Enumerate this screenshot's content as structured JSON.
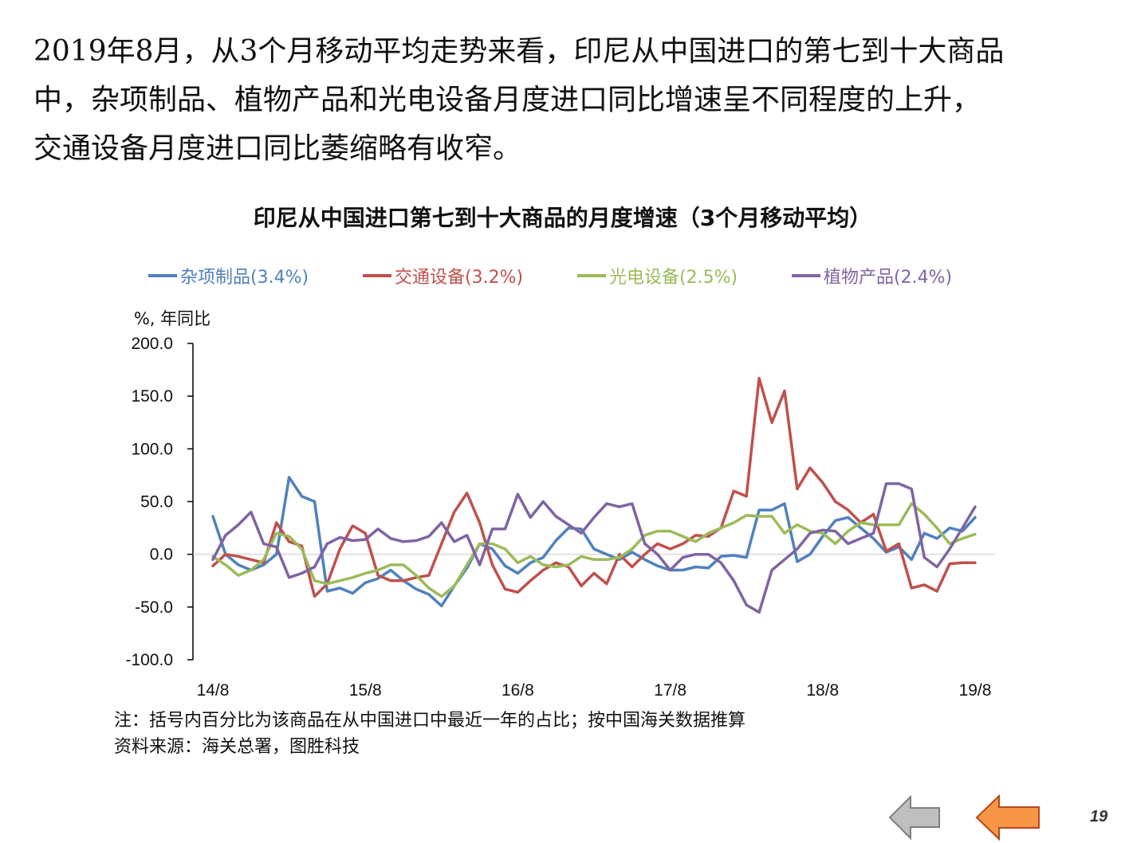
{
  "paragraph": {
    "line1": "2019年8月，从3个月移动平均走势来看，印尼从中国进口的第七到十大商品",
    "line2": "中，杂项制品、植物产品和光电设备月度进口同比增速呈不同程度的上升，",
    "line3": "交通设备月度进口同比萎缩略有收窄。"
  },
  "chart_data": {
    "type": "line",
    "title": "印尼从中国进口第七到十大商品的月度增速（3个月移动平均）",
    "ylabel": "%, 年同比",
    "xlabel": "",
    "ylim": [
      -100,
      200
    ],
    "y_ticks": [
      "200.0",
      "150.0",
      "100.0",
      "50.0",
      "0.0",
      "-50.0",
      "-100.0"
    ],
    "x_tick_labels": [
      "14/8",
      "15/8",
      "16/8",
      "17/8",
      "18/8",
      "19/8"
    ],
    "grid": false,
    "legend_position": "top",
    "x": [
      "14/8",
      "14/9",
      "14/10",
      "14/11",
      "14/12",
      "15/1",
      "15/2",
      "15/3",
      "15/4",
      "15/5",
      "15/6",
      "15/7",
      "15/8",
      "15/9",
      "15/10",
      "15/11",
      "15/12",
      "16/1",
      "16/2",
      "16/3",
      "16/4",
      "16/5",
      "16/6",
      "16/7",
      "16/8",
      "16/9",
      "16/10",
      "16/11",
      "16/12",
      "17/1",
      "17/2",
      "17/3",
      "17/4",
      "17/5",
      "17/6",
      "17/7",
      "17/8",
      "17/9",
      "17/10",
      "17/11",
      "17/12",
      "18/1",
      "18/2",
      "18/3",
      "18/4",
      "18/5",
      "18/6",
      "18/7",
      "18/8",
      "18/9",
      "18/10",
      "18/11",
      "18/12",
      "19/1",
      "19/2",
      "19/3",
      "19/4",
      "19/5",
      "19/6",
      "19/7",
      "19/8"
    ],
    "series": [
      {
        "name": "杂项制品(3.4%)",
        "color": "#4F81BD",
        "values": [
          36,
          0,
          -10,
          -15,
          -10,
          0,
          73,
          55,
          50,
          -35,
          -32,
          -37,
          -27,
          -23,
          -15,
          -25,
          -33,
          -38,
          -49,
          -30,
          -13,
          10,
          5,
          -11,
          -18,
          -8,
          -3,
          13,
          25,
          24,
          5,
          0,
          -5,
          2,
          -5,
          -11,
          -15,
          -15,
          -12,
          -13,
          -2,
          -1,
          -3,
          42,
          42,
          48,
          -7,
          0,
          17,
          32,
          35,
          25,
          15,
          2,
          7,
          -5,
          20,
          15,
          25,
          22,
          35
        ]
      },
      {
        "name": "交通设备(3.2%)",
        "color": "#C0504D",
        "values": [
          -11,
          0,
          -2,
          -5,
          -8,
          30,
          12,
          8,
          -40,
          -28,
          5,
          27,
          20,
          -20,
          -25,
          -25,
          -22,
          -20,
          10,
          40,
          58,
          30,
          -10,
          -33,
          -36,
          -25,
          -15,
          -8,
          -12,
          -30,
          -18,
          -28,
          0,
          -12,
          0,
          10,
          5,
          10,
          18,
          17,
          25,
          60,
          55,
          167,
          125,
          155,
          62,
          82,
          68,
          50,
          42,
          30,
          38,
          3,
          10,
          -32,
          -29,
          -35,
          -9,
          -8,
          -8
        ]
      },
      {
        "name": "光电设备(2.5%)",
        "color": "#9BBB59",
        "values": [
          -2,
          -10,
          -20,
          -15,
          -5,
          20,
          17,
          5,
          -25,
          -28,
          -25,
          -22,
          -18,
          -15,
          -10,
          -10,
          -20,
          -32,
          -40,
          -30,
          -10,
          10,
          10,
          5,
          -8,
          -2,
          -10,
          -12,
          -10,
          -2,
          -5,
          -5,
          -3,
          5,
          18,
          22,
          22,
          17,
          12,
          20,
          25,
          30,
          37,
          36,
          36,
          20,
          28,
          22,
          20,
          10,
          22,
          30,
          28,
          28,
          28,
          48,
          38,
          25,
          10,
          15,
          19
        ]
      },
      {
        "name": "植物产品(2.4%)",
        "color": "#8064A2",
        "values": [
          -5,
          18,
          28,
          40,
          10,
          7,
          -22,
          -18,
          -12,
          10,
          16,
          13,
          14,
          24,
          15,
          12,
          13,
          17,
          30,
          12,
          18,
          -10,
          24,
          24,
          57,
          35,
          50,
          36,
          28,
          20,
          35,
          48,
          45,
          48,
          10,
          0,
          -15,
          -3,
          0,
          0,
          -8,
          -25,
          -48,
          -55,
          -15,
          -5,
          5,
          20,
          23,
          22,
          10,
          15,
          20,
          67,
          67,
          62,
          -3,
          -12,
          5,
          25,
          45
        ]
      }
    ]
  },
  "note": {
    "line1": "注：括号内百分比为该商品在从中国进口中最近一年的占比；按中国海关数据推算",
    "line2": "资料来源：海关总署，图胜科技"
  },
  "nav": {
    "prev_color": "#BFBFBF",
    "next_color": "#F79646"
  },
  "page_number": "19"
}
